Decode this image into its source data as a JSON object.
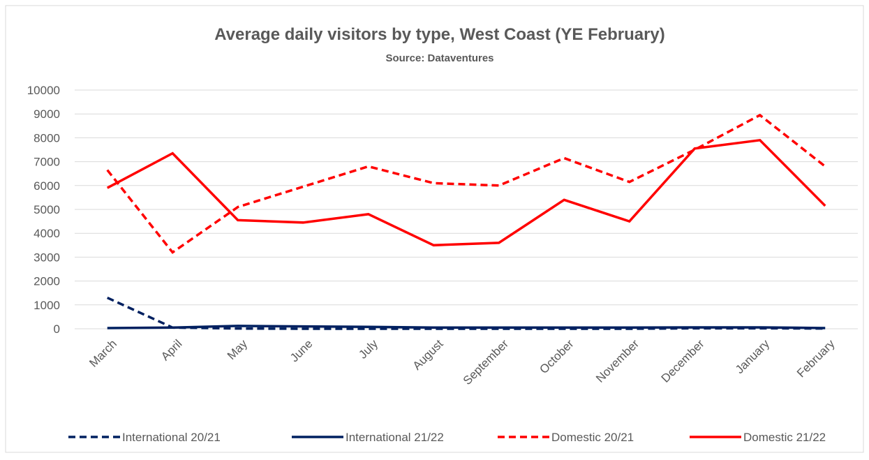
{
  "chart_data": {
    "type": "line",
    "title": "Average daily visitors by type, West Coast (YE February)",
    "subtitle": "Source: Dataventures",
    "categories": [
      "March",
      "April",
      "May",
      "June",
      "July",
      "August",
      "September",
      "October",
      "November",
      "December",
      "January",
      "February"
    ],
    "series": [
      {
        "name": "International 20/21",
        "color": "#002060",
        "dashed": true,
        "values": [
          1300,
          50,
          10,
          0,
          0,
          0,
          0,
          0,
          0,
          20,
          20,
          10
        ]
      },
      {
        "name": "International 21/22",
        "color": "#002060",
        "dashed": false,
        "values": [
          30,
          50,
          120,
          100,
          80,
          50,
          50,
          50,
          50,
          60,
          60,
          30
        ]
      },
      {
        "name": "Domestic 20/21",
        "color": "#ff0000",
        "dashed": true,
        "values": [
          6650,
          3200,
          5100,
          5950,
          6800,
          6100,
          6000,
          7150,
          6150,
          7500,
          8950,
          6800
        ]
      },
      {
        "name": "Domestic 21/22",
        "color": "#ff0000",
        "dashed": false,
        "values": [
          5900,
          7350,
          4550,
          4450,
          4800,
          3500,
          3600,
          5400,
          4500,
          7550,
          7900,
          5150
        ]
      }
    ],
    "ylim": [
      0,
      10000
    ],
    "yticks": [
      0,
      1000,
      2000,
      3000,
      4000,
      5000,
      6000,
      7000,
      8000,
      9000,
      10000
    ],
    "grid": true,
    "legend": "bottom"
  }
}
